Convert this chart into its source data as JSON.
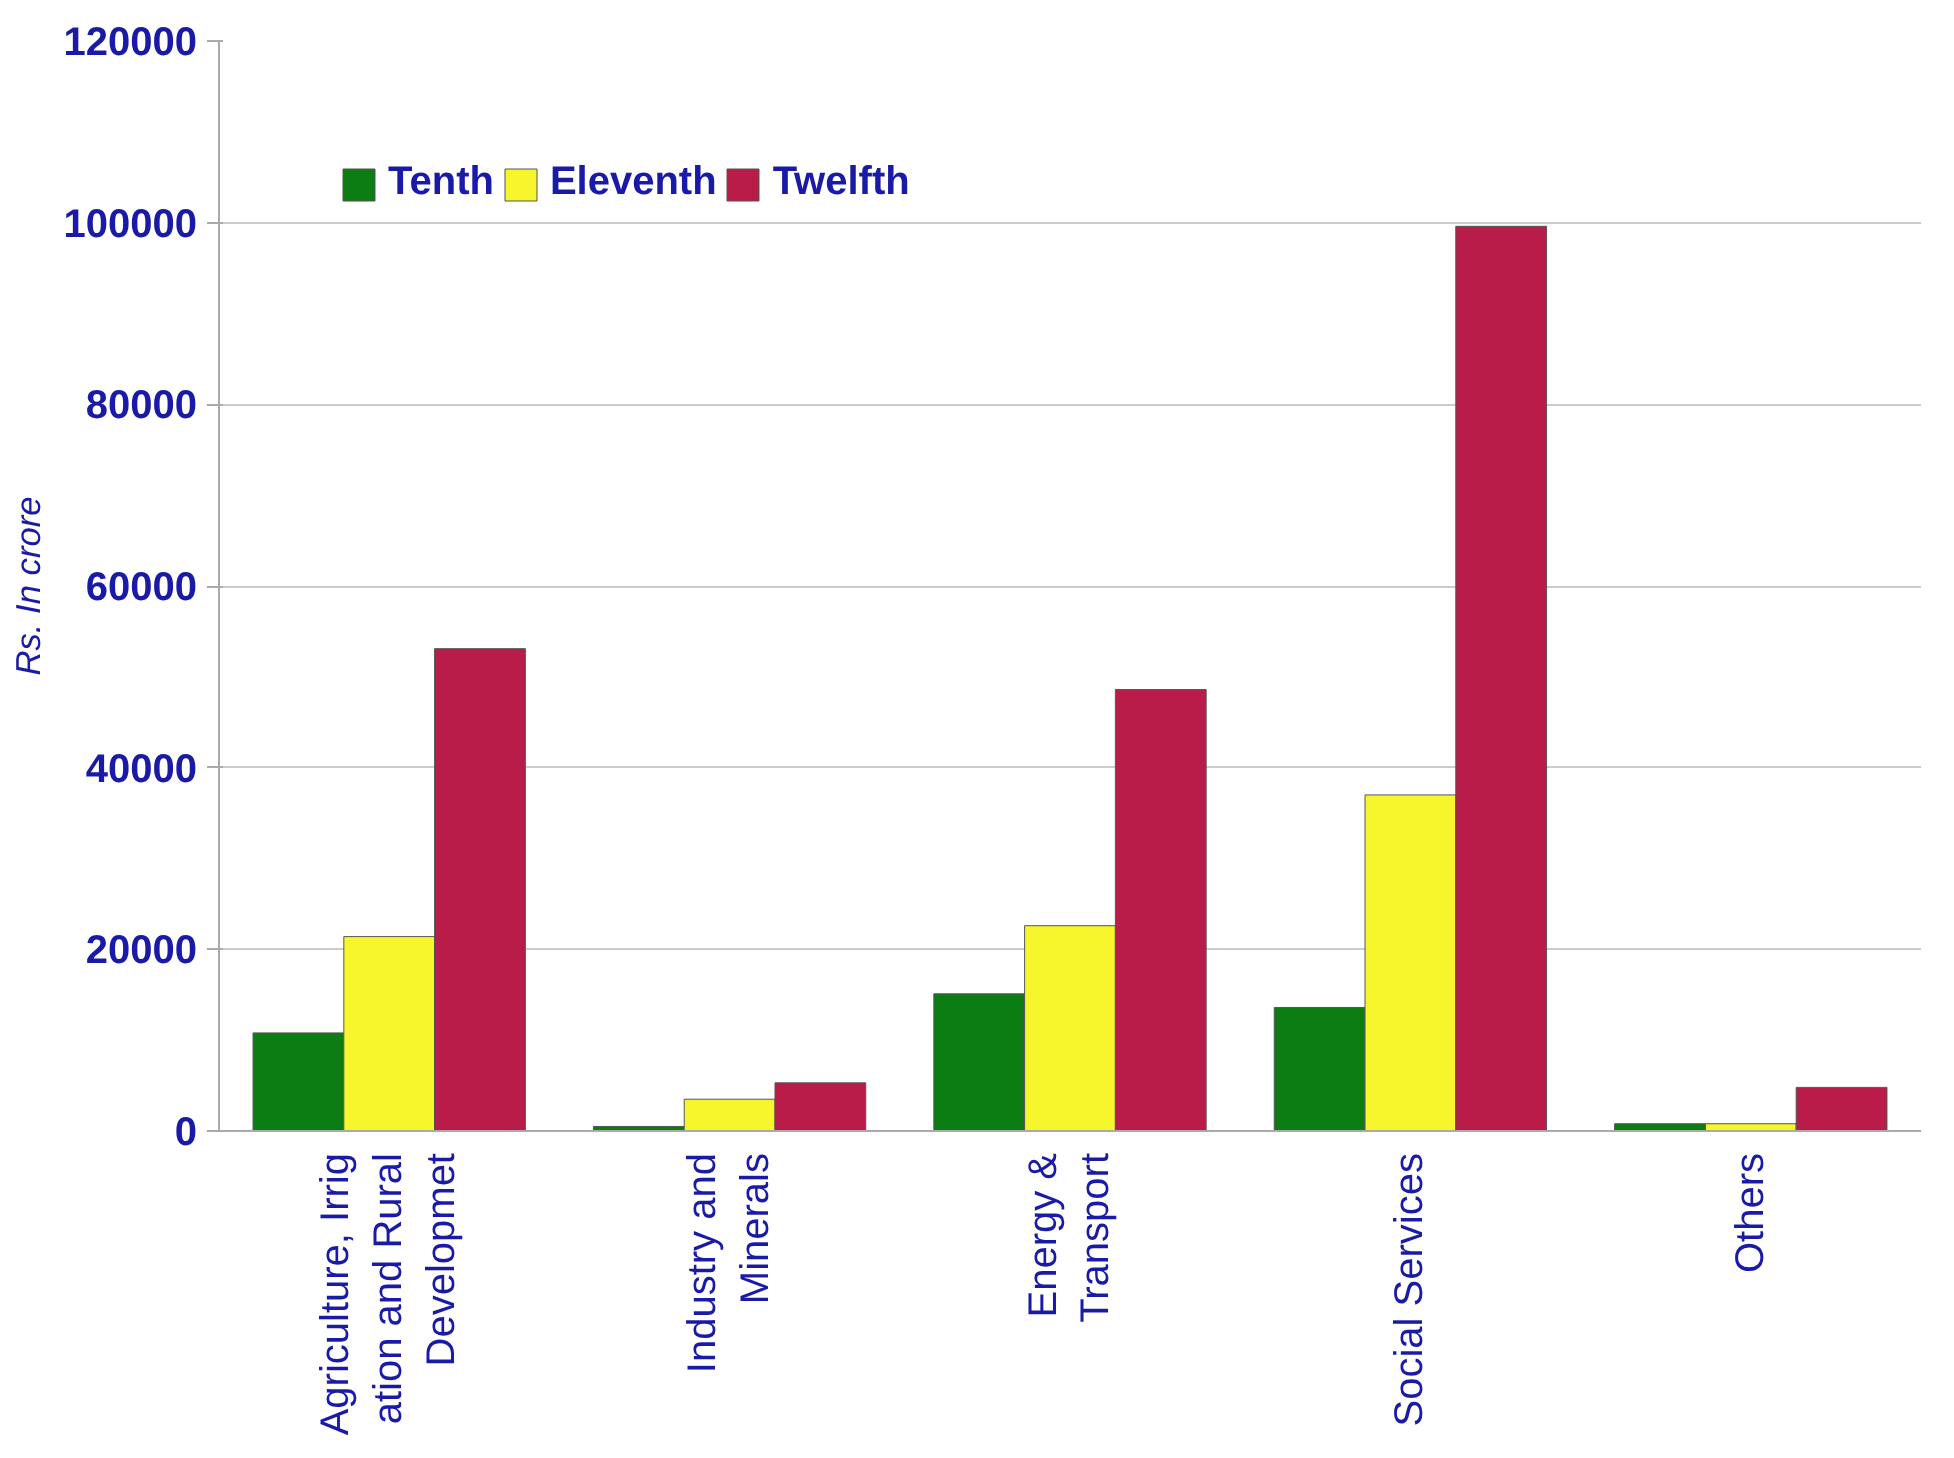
{
  "chart_data": {
    "type": "bar",
    "ylabel": "Rs. In crore",
    "categories": [
      "Agriculture, Irrig\nation and Rural\nDevelopmet",
      "Industry and\nMinerals",
      "Energy &\nTransport",
      "Social Services",
      "Others"
    ],
    "series": [
      {
        "name": "Tenth",
        "color": "#0b7d12",
        "values": [
          10800,
          500,
          15100,
          13600,
          800
        ]
      },
      {
        "name": "Eleventh",
        "color": "#f7f52c",
        "values": [
          21400,
          3500,
          22600,
          37000,
          800
        ]
      },
      {
        "name": "Twelfth",
        "color": "#b91c48",
        "values": [
          53100,
          5300,
          48600,
          99600,
          4800
        ]
      }
    ],
    "ylim": [
      0,
      120000
    ],
    "yticks": [
      0,
      20000,
      40000,
      60000,
      80000,
      100000,
      120000
    ],
    "grid": "y",
    "legend": "top left"
  }
}
